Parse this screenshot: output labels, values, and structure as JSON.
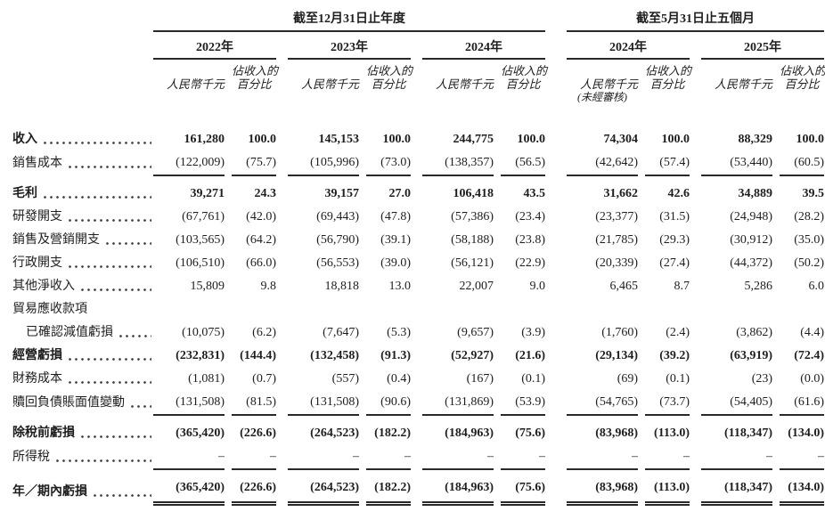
{
  "table": {
    "period_groups": [
      {
        "title": "截至12月31日止年度",
        "years": [
          "2022年",
          "2023年",
          "2024年"
        ]
      },
      {
        "title": "截至5月31日止五個月",
        "years": [
          "2024年",
          "2025年"
        ]
      }
    ],
    "col_headers": {
      "amount": "人民幣千元",
      "pct_line1": "佔收入的",
      "pct_line2": "百分比",
      "unaudited_note": "(未經審核)",
      "unaudited_year_index": 3
    },
    "rows": [
      {
        "label": "收入",
        "bold": true,
        "dots": true,
        "underline": "none",
        "values": [
          "161,280",
          "100.0",
          "145,153",
          "100.0",
          "244,775",
          "100.0",
          "74,304",
          "100.0",
          "88,329",
          "100.0"
        ]
      },
      {
        "label": "銷售成本",
        "bold": false,
        "dots": true,
        "underline": "single",
        "values": [
          "(122,009)",
          "(75.7)",
          "(105,996)",
          "(73.0)",
          "(138,357)",
          "(56.5)",
          "(42,642)",
          "(57.4)",
          "(53,440)",
          "(60.5)"
        ]
      },
      {
        "label": "毛利",
        "bold": true,
        "dots": true,
        "underline": "none",
        "values": [
          "39,271",
          "24.3",
          "39,157",
          "27.0",
          "106,418",
          "43.5",
          "31,662",
          "42.6",
          "34,889",
          "39.5"
        ]
      },
      {
        "label": "研發開支",
        "bold": false,
        "dots": true,
        "underline": "none",
        "values": [
          "(67,761)",
          "(42.0)",
          "(69,443)",
          "(47.8)",
          "(57,386)",
          "(23.4)",
          "(23,377)",
          "(31.5)",
          "(24,948)",
          "(28.2)"
        ]
      },
      {
        "label": "銷售及營銷開支",
        "bold": false,
        "dots": true,
        "underline": "none",
        "values": [
          "(103,565)",
          "(64.2)",
          "(56,790)",
          "(39.1)",
          "(58,188)",
          "(23.8)",
          "(21,785)",
          "(29.3)",
          "(30,912)",
          "(35.0)"
        ]
      },
      {
        "label": "行政開支",
        "bold": false,
        "dots": true,
        "underline": "none",
        "values": [
          "(106,510)",
          "(66.0)",
          "(56,553)",
          "(39.0)",
          "(56,121)",
          "(22.9)",
          "(20,339)",
          "(27.4)",
          "(44,372)",
          "(50.2)"
        ]
      },
      {
        "label": "其他淨收入",
        "bold": false,
        "dots": true,
        "underline": "none",
        "values": [
          "15,809",
          "9.8",
          "18,818",
          "13.0",
          "22,007",
          "9.0",
          "6,465",
          "8.7",
          "5,286",
          "6.0"
        ]
      },
      {
        "label": "貿易應收款項",
        "bold": false,
        "dots": false,
        "underline": "none",
        "values": []
      },
      {
        "label": "已確認減值虧損",
        "bold": false,
        "indent": true,
        "dots": true,
        "underline": "none",
        "values": [
          "(10,075)",
          "(6.2)",
          "(7,647)",
          "(5.3)",
          "(9,657)",
          "(3.9)",
          "(1,760)",
          "(2.4)",
          "(3,862)",
          "(4.4)"
        ]
      },
      {
        "label": "經營虧損",
        "bold": true,
        "dots": true,
        "underline": "none",
        "values": [
          "(232,831)",
          "(144.4)",
          "(132,458)",
          "(91.3)",
          "(52,927)",
          "(21.6)",
          "(29,134)",
          "(39.2)",
          "(63,919)",
          "(72.4)"
        ]
      },
      {
        "label": "財務成本",
        "bold": false,
        "dots": true,
        "underline": "none",
        "values": [
          "(1,081)",
          "(0.7)",
          "(557)",
          "(0.4)",
          "(167)",
          "(0.1)",
          "(69)",
          "(0.1)",
          "(23)",
          "(0.0)"
        ]
      },
      {
        "label": "贖回負債賬面值變動",
        "bold": false,
        "dots": true,
        "underline": "single",
        "values": [
          "(131,508)",
          "(81.5)",
          "(131,508)",
          "(90.6)",
          "(131,869)",
          "(53.9)",
          "(54,765)",
          "(73.7)",
          "(54,405)",
          "(61.6)"
        ]
      },
      {
        "label": "除稅前虧損",
        "bold": true,
        "dots": true,
        "underline": "none",
        "values": [
          "(365,420)",
          "(226.6)",
          "(264,523)",
          "(182.2)",
          "(184,963)",
          "(75.6)",
          "(83,968)",
          "(113.0)",
          "(118,347)",
          "(134.0)"
        ]
      },
      {
        "label": "所得稅",
        "bold": false,
        "dots": true,
        "underline": "single",
        "values": [
          "–",
          "–",
          "–",
          "–",
          "–",
          "–",
          "–",
          "–",
          "–",
          "–"
        ]
      },
      {
        "label": "年／期內虧損",
        "bold": true,
        "dots": true,
        "underline": "double",
        "values": [
          "(365,420)",
          "(226.6)",
          "(264,523)",
          "(182.2)",
          "(184,963)",
          "(75.6)",
          "(83,968)",
          "(113.0)",
          "(118,347)",
          "(134.0)"
        ]
      }
    ]
  }
}
